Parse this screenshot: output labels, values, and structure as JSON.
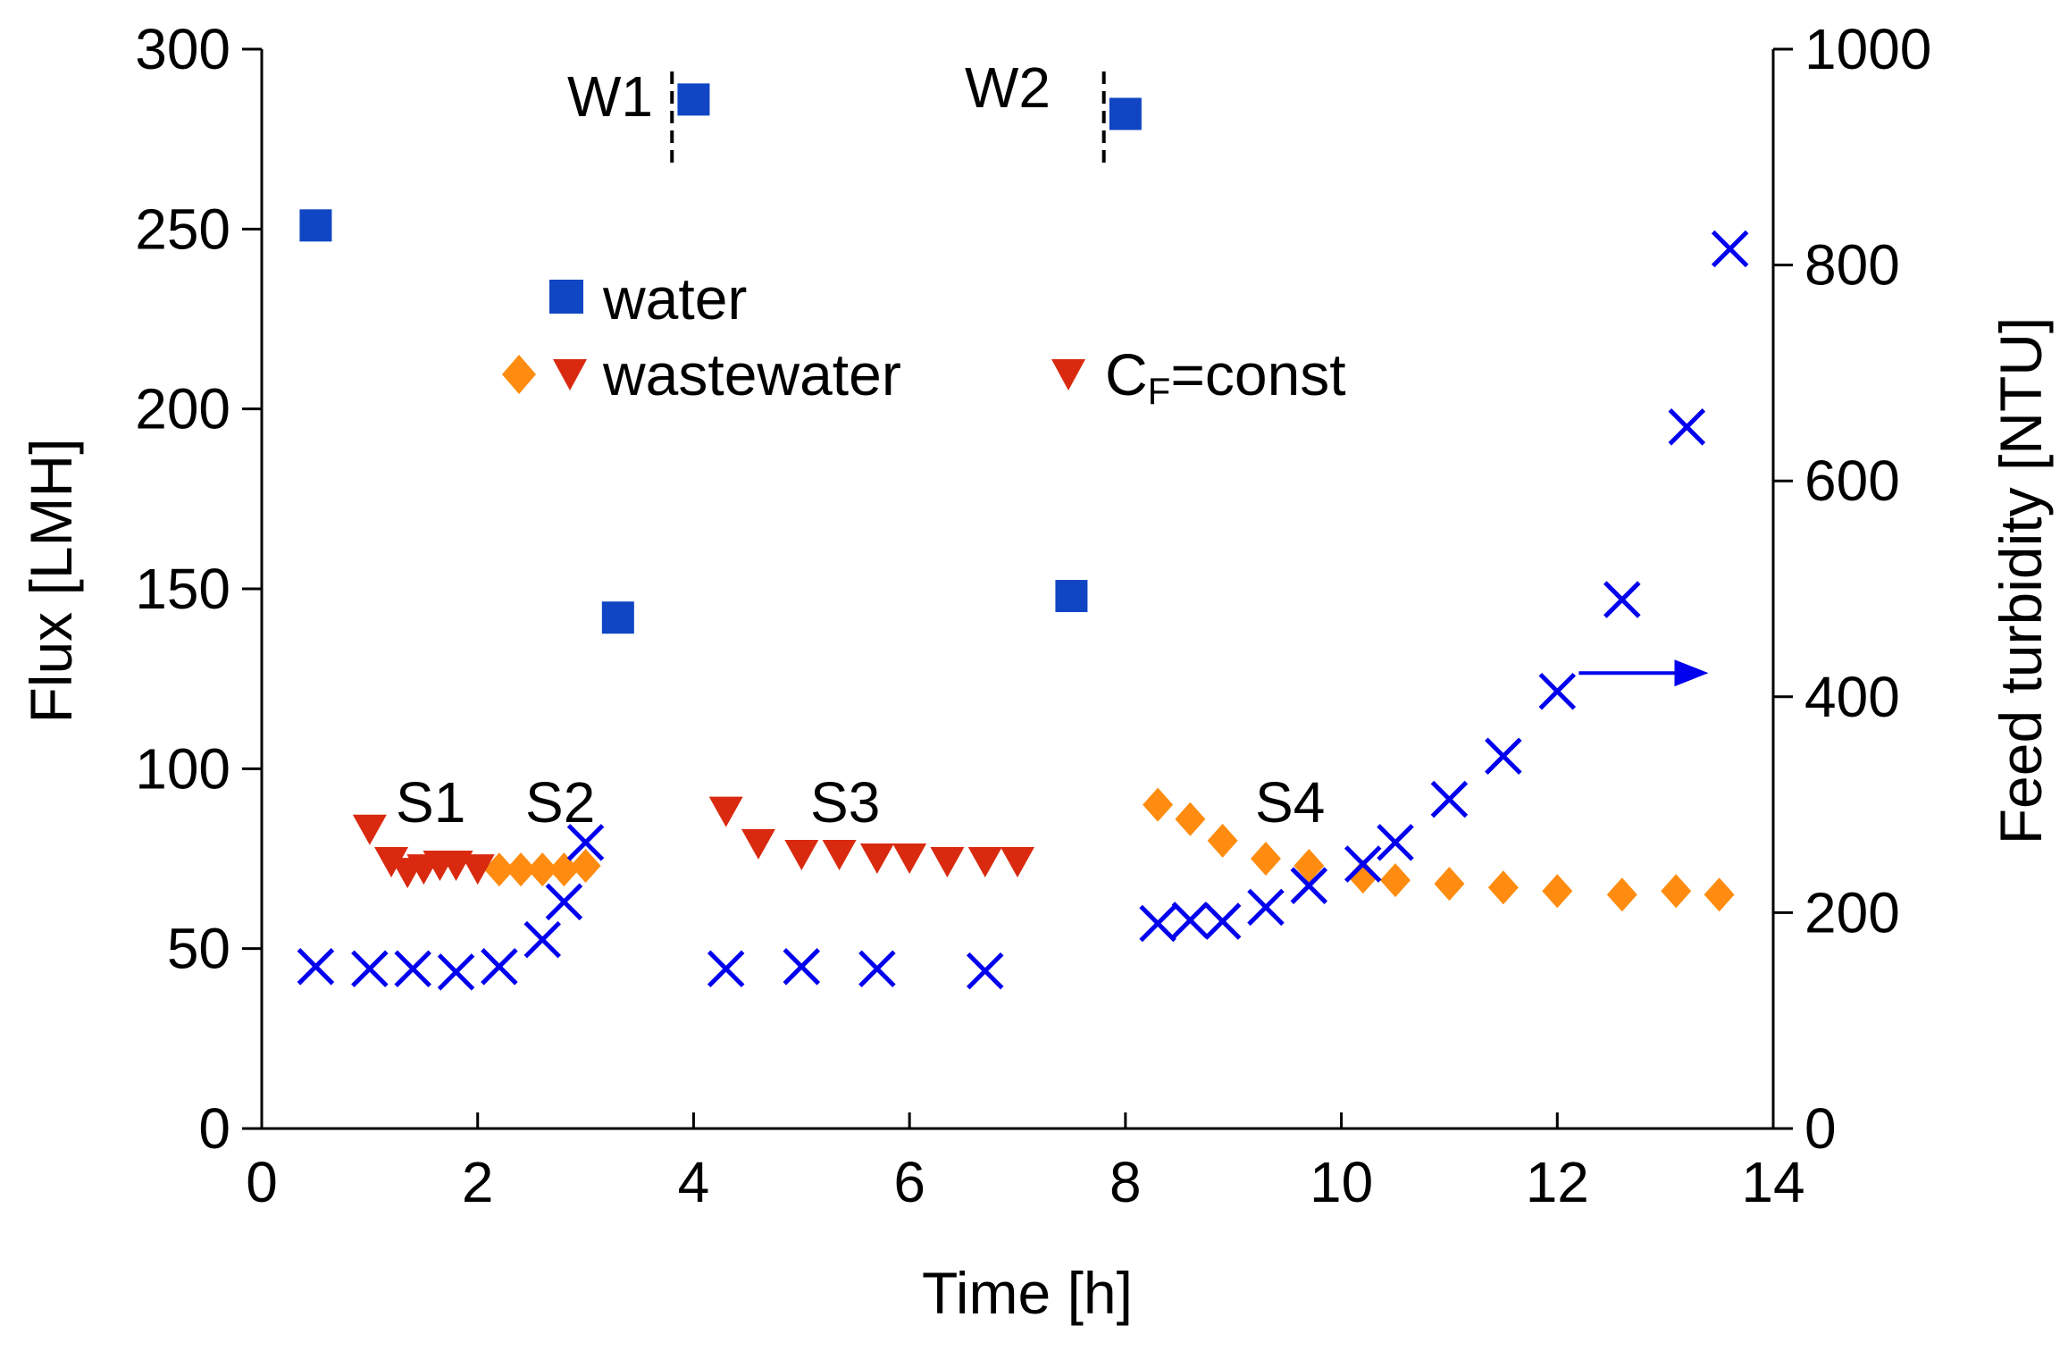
{
  "chart_data": {
    "type": "scatter",
    "xlabel": "Time [h]",
    "ylabel": "Flux [LMH]",
    "y2label": "Feed turbidity [NTU]",
    "xlim": [
      0,
      14
    ],
    "ylim": [
      0,
      300
    ],
    "y2lim": [
      0,
      1000
    ],
    "xticks": [
      "0",
      "2",
      "4",
      "6",
      "8",
      "10",
      "12",
      "14"
    ],
    "yticks": [
      "0",
      "50",
      "100",
      "150",
      "200",
      "250",
      "300"
    ],
    "y2ticks": [
      "0",
      "200",
      "400",
      "600",
      "800",
      "1000"
    ],
    "colors": {
      "water": "#1046c4",
      "wastewater_diamond": "#ff8c10",
      "wastewater_triangle": "#d92a10",
      "turbidity": "#0000ee",
      "y2label": "#0000ee"
    },
    "legend": {
      "water": "water",
      "wastewater": "wastewater",
      "cf_main": "C",
      "cf_sub": "F",
      "cf_rest": "=const"
    },
    "annotations": {
      "w1": "W1",
      "w2": "W2",
      "s1": "S1",
      "s2": "S2",
      "s3": "S3",
      "s4": "S4"
    },
    "marker_positions": {
      "w1_x": 3.8,
      "w2_x": 7.8
    },
    "series": [
      {
        "name": "water",
        "marker": "square",
        "axis": "left",
        "x": [
          0.5,
          3.3,
          4.0,
          7.5,
          8.0
        ],
        "y": [
          251,
          142,
          286,
          148,
          282
        ]
      },
      {
        "name": "wastewater (diamond)",
        "marker": "diamond",
        "axis": "left",
        "x": [
          2.2,
          2.4,
          2.6,
          2.8,
          3.0,
          8.3,
          8.6,
          8.9,
          9.3,
          9.7,
          10.2,
          10.5,
          11.0,
          11.5,
          12.0,
          12.6,
          13.1,
          13.5
        ],
        "y": [
          72,
          72,
          72,
          72,
          73,
          90,
          86,
          80,
          75,
          73,
          70,
          69,
          68,
          67,
          66,
          65,
          66,
          65
        ]
      },
      {
        "name": "wastewater / CF=const (triangle)",
        "marker": "triangle-down",
        "axis": "left",
        "x": [
          1.0,
          1.2,
          1.35,
          1.5,
          1.65,
          1.8,
          2.0,
          4.3,
          4.6,
          5.0,
          5.35,
          5.7,
          6.0,
          6.35,
          6.7,
          7.0
        ],
        "y": [
          83,
          74,
          71,
          72,
          73,
          73,
          72,
          88,
          79,
          76,
          76,
          75,
          75,
          74,
          74,
          74
        ]
      },
      {
        "name": "feed turbidity",
        "marker": "x",
        "axis": "right",
        "x": [
          0.5,
          1.0,
          1.4,
          1.8,
          2.2,
          2.6,
          2.8,
          3.0,
          4.3,
          5.0,
          5.7,
          6.7,
          8.3,
          8.6,
          8.9,
          9.3,
          9.7,
          10.2,
          10.5,
          11.0,
          11.5,
          12.0,
          12.6,
          13.2,
          13.6
        ],
        "y": [
          150,
          148,
          148,
          145,
          150,
          175,
          210,
          265,
          148,
          150,
          148,
          146,
          190,
          193,
          192,
          205,
          225,
          245,
          265,
          305,
          345,
          405,
          490,
          650,
          815
        ]
      }
    ],
    "arrow": {
      "from_x": 12.2,
      "to_x": 13.4,
      "y2": 422
    }
  }
}
